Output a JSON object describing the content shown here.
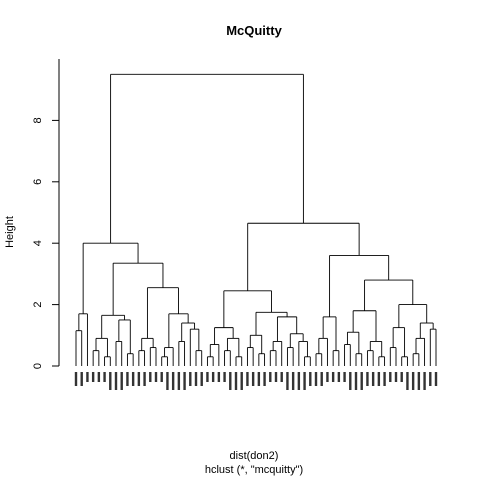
{
  "chart_data": {
    "type": "dendrogram",
    "title": "McQuitty",
    "ylabel": "Height",
    "xlabel": "dist(don2)",
    "subtitle": "hclust (*, \"mcquitty\")",
    "ylim": [
      0,
      10
    ],
    "yticks": [
      0,
      2,
      4,
      6,
      8
    ],
    "root_height": 9.5,
    "tree": {
      "h": 9.5,
      "children": [
        {
          "h": 4.0,
          "children": [
            {
              "h": 1.7,
              "children": [
                {
                  "h": 1.15,
                  "children": [
                    {
                      "leaf": true
                    },
                    {
                      "leaf": true
                    }
                  ]
                },
                {
                  "leaf": true
                }
              ]
            },
            {
              "h": 3.35,
              "children": [
                {
                  "h": 1.65,
                  "children": [
                    {
                      "h": 0.9,
                      "children": [
                        {
                          "h": 0.5,
                          "children": [
                            {
                              "leaf": true
                            },
                            {
                              "leaf": true
                            }
                          ]
                        },
                        {
                          "h": 0.3,
                          "children": [
                            {
                              "leaf": true
                            },
                            {
                              "leaf": true
                            }
                          ]
                        }
                      ]
                    },
                    {
                      "h": 1.5,
                      "children": [
                        {
                          "h": 0.8,
                          "children": [
                            {
                              "leaf": true
                            },
                            {
                              "leaf": true
                            }
                          ]
                        },
                        {
                          "h": 0.4,
                          "children": [
                            {
                              "leaf": true
                            },
                            {
                              "leaf": true
                            }
                          ]
                        }
                      ]
                    }
                  ]
                },
                {
                  "h": 2.55,
                  "children": [
                    {
                      "h": 0.9,
                      "children": [
                        {
                          "h": 0.5,
                          "children": [
                            {
                              "leaf": true
                            },
                            {
                              "leaf": true
                            }
                          ]
                        },
                        {
                          "h": 0.6,
                          "children": [
                            {
                              "leaf": true
                            },
                            {
                              "leaf": true
                            }
                          ]
                        }
                      ]
                    },
                    {
                      "h": 1.7,
                      "children": [
                        {
                          "h": 0.6,
                          "children": [
                            {
                              "h": 0.3,
                              "children": [
                                {
                                  "leaf": true
                                },
                                {
                                  "leaf": true
                                }
                              ]
                            },
                            {
                              "leaf": true
                            }
                          ]
                        },
                        {
                          "h": 1.4,
                          "children": [
                            {
                              "h": 0.8,
                              "children": [
                                {
                                  "leaf": true
                                },
                                {
                                  "leaf": true
                                }
                              ]
                            },
                            {
                              "h": 1.2,
                              "children": [
                                {
                                  "leaf": true
                                },
                                {
                                  "h": 0.5,
                                  "children": [
                                    {
                                      "leaf": true
                                    },
                                    {
                                      "leaf": true
                                    }
                                  ]
                                }
                              ]
                            }
                          ]
                        }
                      ]
                    }
                  ]
                }
              ]
            }
          ]
        },
        {
          "h": 4.65,
          "children": [
            {
              "h": 2.45,
              "children": [
                {
                  "h": 1.25,
                  "children": [
                    {
                      "h": 0.7,
                      "children": [
                        {
                          "h": 0.3,
                          "children": [
                            {
                              "leaf": true
                            },
                            {
                              "leaf": true
                            }
                          ]
                        },
                        {
                          "leaf": true
                        }
                      ]
                    },
                    {
                      "h": 0.9,
                      "children": [
                        {
                          "h": 0.5,
                          "children": [
                            {
                              "leaf": true
                            },
                            {
                              "leaf": true
                            }
                          ]
                        },
                        {
                          "h": 0.3,
                          "children": [
                            {
                              "leaf": true
                            },
                            {
                              "leaf": true
                            }
                          ]
                        }
                      ]
                    }
                  ]
                },
                {
                  "h": 1.75,
                  "children": [
                    {
                      "h": 1.0,
                      "children": [
                        {
                          "h": 0.6,
                          "children": [
                            {
                              "leaf": true
                            },
                            {
                              "leaf": true
                            }
                          ]
                        },
                        {
                          "h": 0.4,
                          "children": [
                            {
                              "leaf": true
                            },
                            {
                              "leaf": true
                            }
                          ]
                        }
                      ]
                    },
                    {
                      "h": 1.6,
                      "children": [
                        {
                          "h": 0.8,
                          "children": [
                            {
                              "h": 0.5,
                              "children": [
                                {
                                  "leaf": true
                                },
                                {
                                  "leaf": true
                                }
                              ]
                            },
                            {
                              "leaf": true
                            }
                          ]
                        },
                        {
                          "h": 1.05,
                          "children": [
                            {
                              "h": 0.6,
                              "children": [
                                {
                                  "leaf": true
                                },
                                {
                                  "leaf": true
                                }
                              ]
                            },
                            {
                              "h": 0.8,
                              "children": [
                                {
                                  "leaf": true
                                },
                                {
                                  "h": 0.3,
                                  "children": [
                                    {
                                      "leaf": true
                                    },
                                    {
                                      "leaf": true
                                    }
                                  ]
                                }
                              ]
                            }
                          ]
                        }
                      ]
                    }
                  ]
                }
              ]
            },
            {
              "h": 3.6,
              "children": [
                {
                  "h": 1.6,
                  "children": [
                    {
                      "h": 0.9,
                      "children": [
                        {
                          "h": 0.4,
                          "children": [
                            {
                              "leaf": true
                            },
                            {
                              "leaf": true
                            }
                          ]
                        },
                        {
                          "leaf": true
                        }
                      ]
                    },
                    {
                      "h": 0.5,
                      "children": [
                        {
                          "leaf": true
                        },
                        {
                          "leaf": true
                        }
                      ]
                    }
                  ]
                },
                {
                  "h": 2.8,
                  "children": [
                    {
                      "h": 1.8,
                      "children": [
                        {
                          "h": 1.1,
                          "children": [
                            {
                              "h": 0.7,
                              "children": [
                                {
                                  "leaf": true
                                },
                                {
                                  "leaf": true
                                }
                              ]
                            },
                            {
                              "h": 0.4,
                              "children": [
                                {
                                  "leaf": true
                                },
                                {
                                  "leaf": true
                                }
                              ]
                            }
                          ]
                        },
                        {
                          "h": 0.8,
                          "children": [
                            {
                              "h": 0.5,
                              "children": [
                                {
                                  "leaf": true
                                },
                                {
                                  "leaf": true
                                }
                              ]
                            },
                            {
                              "h": 0.3,
                              "children": [
                                {
                                  "leaf": true
                                },
                                {
                                  "leaf": true
                                }
                              ]
                            }
                          ]
                        }
                      ]
                    },
                    {
                      "h": 2.0,
                      "children": [
                        {
                          "h": 1.25,
                          "children": [
                            {
                              "h": 0.6,
                              "children": [
                                {
                                  "leaf": true
                                },
                                {
                                  "leaf": true
                                }
                              ]
                            },
                            {
                              "h": 0.3,
                              "children": [
                                {
                                  "leaf": true
                                },
                                {
                                  "leaf": true
                                }
                              ]
                            }
                          ]
                        },
                        {
                          "h": 1.4,
                          "children": [
                            {
                              "h": 0.9,
                              "children": [
                                {
                                  "h": 0.4,
                                  "children": [
                                    {
                                      "leaf": true
                                    },
                                    {
                                      "leaf": true
                                    }
                                  ]
                                },
                                {
                                  "leaf": true
                                }
                              ]
                            },
                            {
                              "h": 1.2,
                              "children": [
                                {
                                  "leaf": true
                                },
                                {
                                  "leaf": true
                                }
                              ]
                            }
                          ]
                        }
                      ]
                    }
                  ]
                }
              ]
            }
          ]
        }
      ]
    }
  }
}
